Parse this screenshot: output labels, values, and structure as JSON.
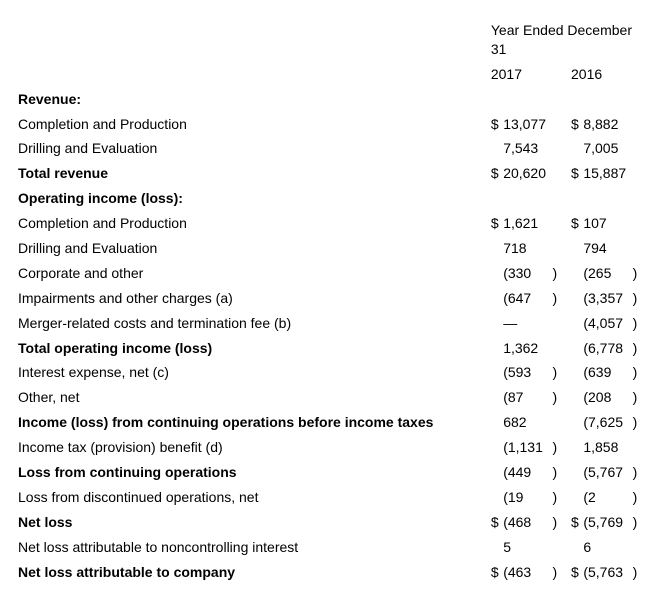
{
  "header": {
    "super": "Year Ended December 31",
    "years": [
      "2017",
      "2016"
    ]
  },
  "rows": [
    {
      "label": "Revenue:",
      "bold": true,
      "vals": [
        {},
        {}
      ]
    },
    {
      "label": "Completion and Production",
      "vals": [
        {
          "cur": "$",
          "num": "13,077"
        },
        {
          "cur": "$",
          "num": "8,882"
        }
      ]
    },
    {
      "label": "Drilling and Evaluation",
      "vals": [
        {
          "num": "7,543"
        },
        {
          "num": "7,005"
        }
      ]
    },
    {
      "label": "Total revenue",
      "bold": true,
      "vals": [
        {
          "cur": "$",
          "num": "20,620"
        },
        {
          "cur": "$",
          "num": "15,887"
        }
      ]
    },
    {
      "label": "Operating income (loss):",
      "bold": true,
      "vals": [
        {},
        {}
      ]
    },
    {
      "label": "Completion and Production",
      "vals": [
        {
          "cur": "$",
          "num": "1,621"
        },
        {
          "cur": "$",
          "num": "107"
        }
      ]
    },
    {
      "label": "Drilling and Evaluation",
      "vals": [
        {
          "num": "718"
        },
        {
          "num": "794"
        }
      ]
    },
    {
      "label": "Corporate and other",
      "vals": [
        {
          "num": "(330",
          "paren": ")"
        },
        {
          "num": "(265",
          "paren": ")"
        }
      ]
    },
    {
      "label": "Impairments and other charges (a)",
      "vals": [
        {
          "num": "(647",
          "paren": ")"
        },
        {
          "num": "(3,357",
          "paren": ")"
        }
      ]
    },
    {
      "label": "Merger-related costs and termination fee (b)",
      "vals": [
        {
          "num": "—"
        },
        {
          "num": "(4,057",
          "paren": ")"
        }
      ]
    },
    {
      "label": "Total operating income (loss)",
      "bold": true,
      "vals": [
        {
          "num": "1,362"
        },
        {
          "num": "(6,778",
          "paren": ")"
        }
      ]
    },
    {
      "label": "Interest expense, net (c)",
      "vals": [
        {
          "num": "(593",
          "paren": ")"
        },
        {
          "num": "(639",
          "paren": ")"
        }
      ]
    },
    {
      "label": "Other, net",
      "vals": [
        {
          "num": "(87",
          "paren": ")"
        },
        {
          "num": "(208",
          "paren": ")"
        }
      ]
    },
    {
      "label": "Income (loss) from continuing operations before income taxes",
      "bold": true,
      "vals": [
        {
          "num": "682"
        },
        {
          "num": "(7,625",
          "paren": ")"
        }
      ]
    },
    {
      "label": "Income tax (provision) benefit (d)",
      "vals": [
        {
          "num": "(1,131",
          "paren": ")"
        },
        {
          "num": "1,858"
        }
      ]
    },
    {
      "label": "Loss from continuing operations",
      "bold": true,
      "vals": [
        {
          "num": "(449",
          "paren": ")"
        },
        {
          "num": "(5,767",
          "paren": ")"
        }
      ]
    },
    {
      "label": "Loss from discontinued operations, net",
      "vals": [
        {
          "num": "(19",
          "paren": ")"
        },
        {
          "num": "(2",
          "paren": ")"
        }
      ]
    },
    {
      "label": "Net loss",
      "bold": true,
      "vals": [
        {
          "cur": "$",
          "num": "(468",
          "paren": ")"
        },
        {
          "cur": "$",
          "num": "(5,769",
          "paren": ")"
        }
      ]
    },
    {
      "label": "Net loss attributable to noncontrolling interest",
      "vals": [
        {
          "num": "5"
        },
        {
          "num": "6"
        }
      ]
    },
    {
      "label": "Net loss attributable to company",
      "bold": true,
      "vals": [
        {
          "cur": "$",
          "num": "(463",
          "paren": ")"
        },
        {
          "cur": "$",
          "num": "(5,763",
          "paren": ")"
        }
      ]
    }
  ]
}
